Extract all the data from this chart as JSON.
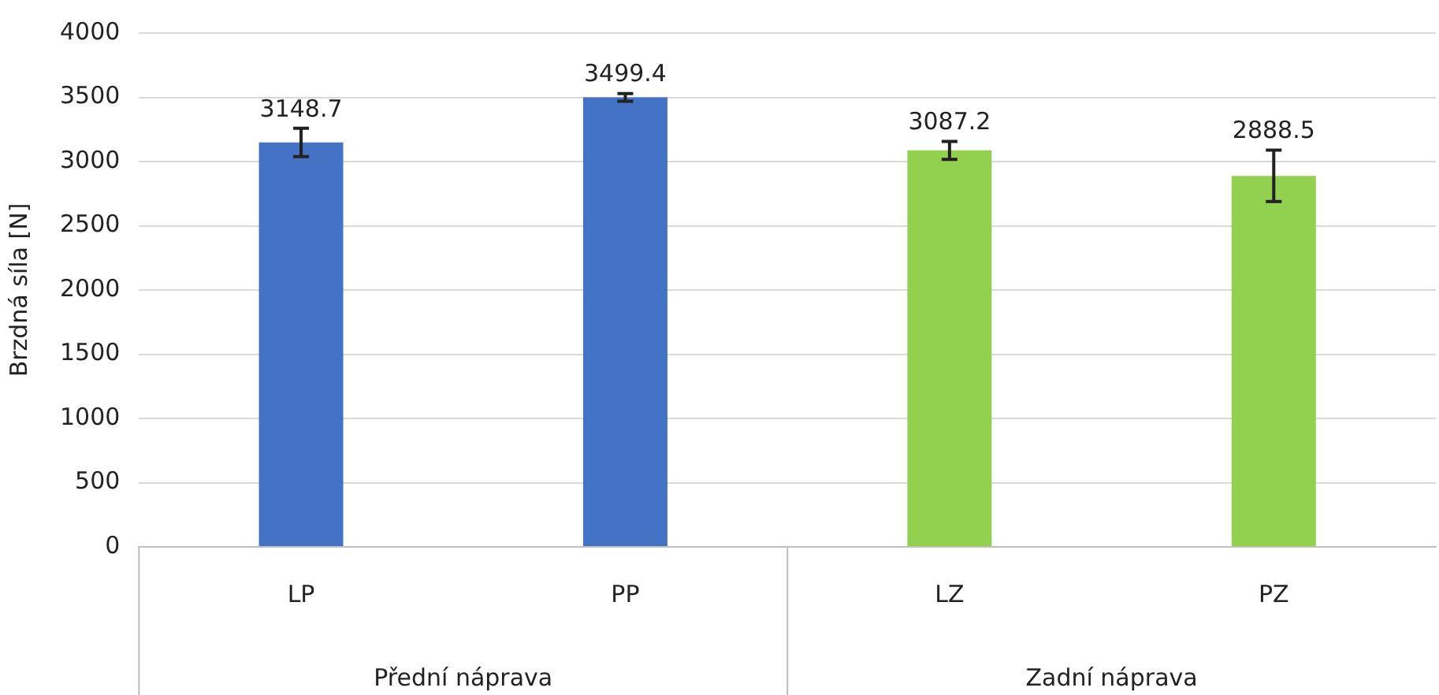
{
  "chart_data": {
    "type": "bar",
    "ylabel": "Brzdná síla [N]",
    "categories": [
      "LP",
      "PP",
      "LZ",
      "PZ"
    ],
    "values": [
      3148.7,
      3499.4,
      3087.2,
      2888.5
    ],
    "errors": [
      110,
      30,
      70,
      200
    ],
    "colors": [
      "#4472c4",
      "#4472c4",
      "#92d050",
      "#92d050"
    ],
    "ylim": [
      0,
      4000
    ],
    "yticks": [
      0,
      500,
      1000,
      1500,
      2000,
      2500,
      3000,
      3500,
      4000
    ],
    "grid": "y",
    "legend": false,
    "data_labels": true,
    "annotations": [
      "Přední náprava",
      "Zadní náprava"
    ]
  }
}
